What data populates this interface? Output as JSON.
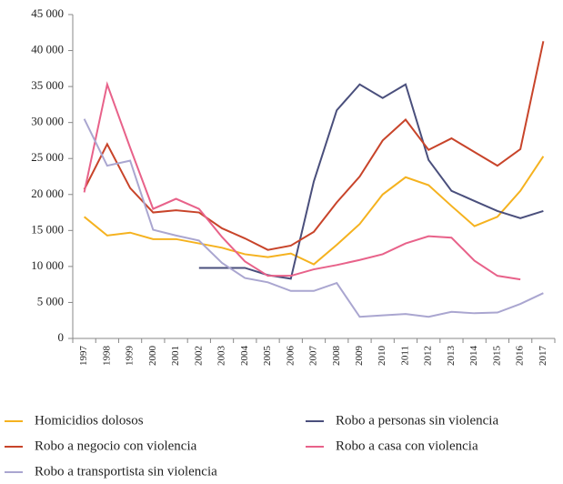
{
  "chart_data": {
    "type": "line",
    "categories": [
      "1997",
      "1998",
      "1999",
      "2000",
      "2001",
      "2002",
      "2003",
      "2004",
      "2005",
      "2006",
      "2007",
      "2008",
      "2009",
      "2010",
      "2011",
      "2012",
      "2013",
      "2014",
      "2015",
      "2016",
      "2017"
    ],
    "ylim": [
      0,
      45000
    ],
    "yticks": [
      {
        "value": 0,
        "label": "0"
      },
      {
        "value": 5000,
        "label": "5 000"
      },
      {
        "value": 10000,
        "label": "10 000"
      },
      {
        "value": 15000,
        "label": "15 000"
      },
      {
        "value": 20000,
        "label": "20 000"
      },
      {
        "value": 25000,
        "label": "25 000"
      },
      {
        "value": 30000,
        "label": "30 000"
      },
      {
        "value": 35000,
        "label": "35 000"
      },
      {
        "value": 40000,
        "label": "40 000"
      },
      {
        "value": 45000,
        "label": "45 000"
      }
    ],
    "grid": false,
    "series": [
      {
        "name": "Homicidios dolosos",
        "color": "#f5b21f",
        "values": [
          16900,
          14300,
          14700,
          13800,
          13800,
          13200,
          12600,
          11700,
          11300,
          11800,
          10300,
          13000,
          15900,
          20000,
          22400,
          21300,
          18400,
          15600,
          16900,
          20500,
          25300
        ]
      },
      {
        "name": "Robo a personas sin violencia",
        "color": "#4a4f7c",
        "values": [
          null,
          null,
          null,
          null,
          null,
          9800,
          9800,
          9800,
          8800,
          8300,
          21800,
          31700,
          35300,
          33400,
          35300,
          24800,
          20500,
          19100,
          17700,
          16700,
          17700
        ]
      },
      {
        "name": "Robo a negocio con violencia",
        "color": "#c8442a",
        "values": [
          20700,
          27000,
          20900,
          17500,
          17800,
          17500,
          15300,
          13900,
          12300,
          12900,
          14800,
          18900,
          22500,
          27500,
          30400,
          26200,
          27800,
          25900,
          24000,
          26300,
          41300
        ]
      },
      {
        "name": "Robo a casa con violencia",
        "color": "#e8628a",
        "values": [
          20300,
          35300,
          26500,
          18000,
          19400,
          18000,
          14100,
          10700,
          8700,
          8700,
          9600,
          10200,
          10900,
          11700,
          13200,
          14200,
          14000,
          10800,
          8700,
          8200,
          null
        ]
      },
      {
        "name": "Robo a transportista sin violencia",
        "color": "#aaa6d0",
        "values": [
          30500,
          24000,
          24700,
          15100,
          14300,
          13600,
          10500,
          8400,
          7800,
          6600,
          6600,
          7700,
          3000,
          3200,
          3400,
          3000,
          3700,
          3500,
          3600,
          4800,
          6300
        ]
      }
    ]
  }
}
